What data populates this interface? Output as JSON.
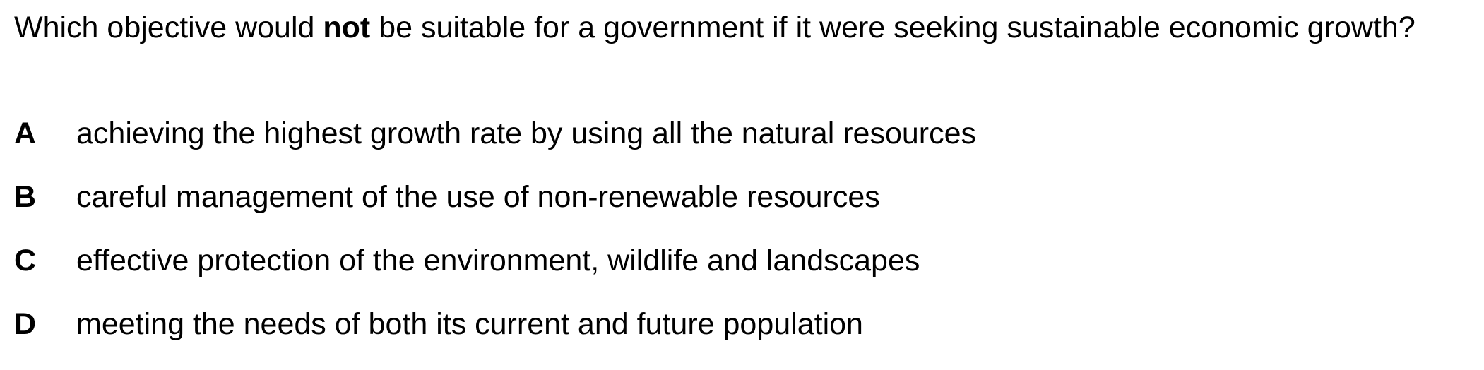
{
  "question": {
    "prefix": "Which objective would ",
    "emphasis": "not",
    "suffix": " be suitable for a government if it were seeking sustainable economic growth?"
  },
  "options": [
    {
      "letter": "A",
      "text": "achieving the highest growth rate by using all the natural resources"
    },
    {
      "letter": "B",
      "text": "careful management of the use of non-renewable resources"
    },
    {
      "letter": "C",
      "text": "effective protection of the environment, wildlife and landscapes"
    },
    {
      "letter": "D",
      "text": "meeting the needs of both its current and future population"
    }
  ]
}
